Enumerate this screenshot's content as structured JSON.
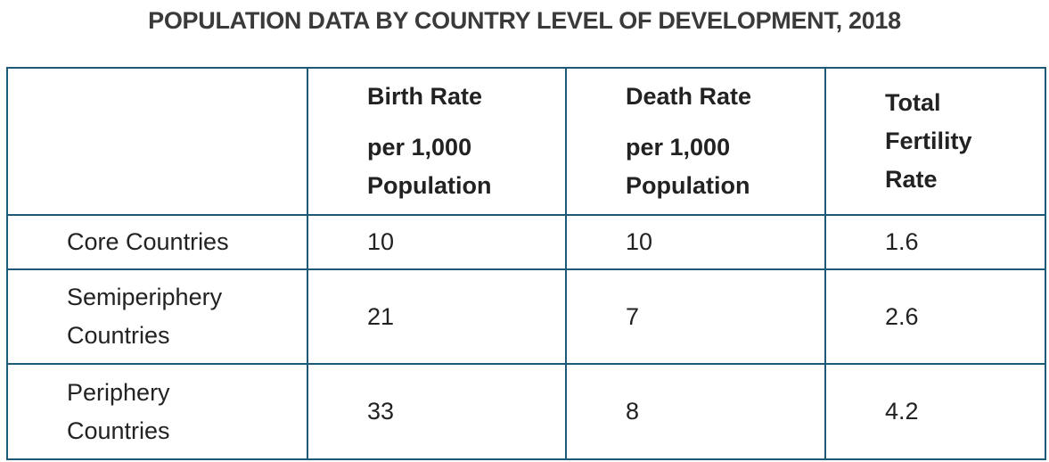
{
  "title": "POPULATION DATA BY COUNTRY LEVEL OF DEVELOPMENT, 2018",
  "colors": {
    "border": "#1d5a78",
    "text": "#222222",
    "title": "#3a3a3a"
  },
  "table": {
    "headers": {
      "corner": "",
      "birth_rate": {
        "line1": "Birth Rate",
        "line2": "per 1,000",
        "line3": "Population"
      },
      "death_rate": {
        "line1": "Death Rate",
        "line2": "per 1,000",
        "line3": "Population"
      },
      "fertility": {
        "line1": "Total",
        "line2": "Fertility",
        "line3": "Rate"
      }
    },
    "rows": [
      {
        "label": {
          "line1": "Core Countries",
          "line2": ""
        },
        "birth_rate": "10",
        "death_rate": "10",
        "fertility": "1.6"
      },
      {
        "label": {
          "line1": "Semiperiphery",
          "line2": "Countries"
        },
        "birth_rate": "21",
        "death_rate": "7",
        "fertility": "2.6"
      },
      {
        "label": {
          "line1": "Periphery",
          "line2": "Countries"
        },
        "birth_rate": "33",
        "death_rate": "8",
        "fertility": "4.2"
      }
    ]
  }
}
